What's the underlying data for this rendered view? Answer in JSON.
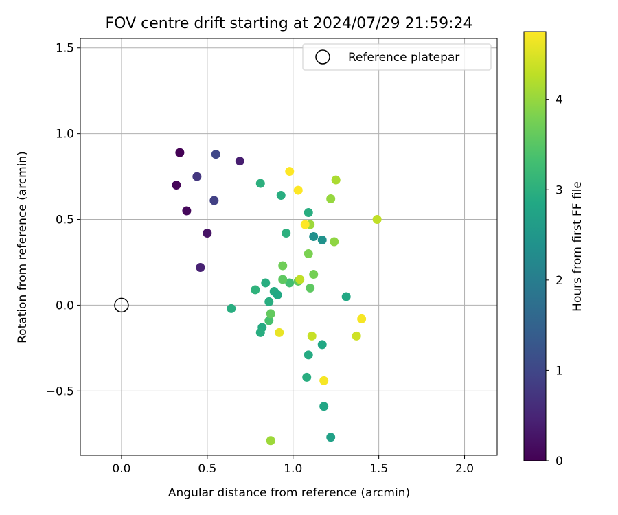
{
  "chart_data": {
    "type": "scatter",
    "title": "FOV centre drift starting at 2024/07/29 21:59:24",
    "xlabel": "Angular distance from reference (arcmin)",
    "ylabel": "Rotation from reference (arcmin)",
    "xlim": [
      -0.24,
      2.19
    ],
    "ylim": [
      -0.875,
      1.555
    ],
    "xticks": [
      0.0,
      0.5,
      1.0,
      1.5,
      2.0
    ],
    "xtick_labels": [
      "0.0",
      "0.5",
      "1.0",
      "1.5",
      "2.0"
    ],
    "yticks": [
      -0.5,
      0.0,
      0.5,
      1.0,
      1.5
    ],
    "ytick_labels": [
      "−0.5",
      "0.0",
      "0.5",
      "1.0",
      "1.5"
    ],
    "grid": true,
    "legend": {
      "label": "Reference platepar",
      "placement": "top-right"
    },
    "reference_point": {
      "x": 0.0,
      "y": 0.0
    },
    "colorbar": {
      "label": "Hours from first FF file",
      "range": [
        0,
        4.75
      ],
      "ticks": [
        0,
        1,
        2,
        3,
        4
      ],
      "tick_labels": [
        "0",
        "1",
        "2",
        "3",
        "4"
      ],
      "colormap": "viridis"
    },
    "points": [
      {
        "x": 0.34,
        "y": 0.89,
        "t": 0.02
      },
      {
        "x": 0.32,
        "y": 0.7,
        "t": 0.06
      },
      {
        "x": 0.38,
        "y": 0.55,
        "t": 0.1
      },
      {
        "x": 0.5,
        "y": 0.42,
        "t": 0.25
      },
      {
        "x": 0.69,
        "y": 0.84,
        "t": 0.4
      },
      {
        "x": 0.46,
        "y": 0.22,
        "t": 0.45
      },
      {
        "x": 0.44,
        "y": 0.75,
        "t": 0.75
      },
      {
        "x": 0.54,
        "y": 0.61,
        "t": 0.9
      },
      {
        "x": 0.55,
        "y": 0.88,
        "t": 1.0
      },
      {
        "x": 1.12,
        "y": 0.4,
        "t": 2.35
      },
      {
        "x": 1.17,
        "y": 0.38,
        "t": 2.4
      },
      {
        "x": 0.81,
        "y": 0.71,
        "t": 3.0
      },
      {
        "x": 0.93,
        "y": 0.64,
        "t": 2.95
      },
      {
        "x": 1.09,
        "y": 0.54,
        "t": 2.95
      },
      {
        "x": 0.96,
        "y": 0.42,
        "t": 3.0
      },
      {
        "x": 0.78,
        "y": 0.09,
        "t": 3.05
      },
      {
        "x": 0.84,
        "y": 0.13,
        "t": 2.95
      },
      {
        "x": 0.89,
        "y": 0.08,
        "t": 2.9
      },
      {
        "x": 0.91,
        "y": 0.06,
        "t": 2.85
      },
      {
        "x": 0.86,
        "y": 0.02,
        "t": 2.95
      },
      {
        "x": 0.64,
        "y": -0.02,
        "t": 2.95
      },
      {
        "x": 0.82,
        "y": -0.13,
        "t": 2.9
      },
      {
        "x": 0.81,
        "y": -0.16,
        "t": 2.95
      },
      {
        "x": 1.31,
        "y": 0.05,
        "t": 2.85
      },
      {
        "x": 1.17,
        "y": -0.23,
        "t": 2.85
      },
      {
        "x": 1.09,
        "y": -0.29,
        "t": 2.9
      },
      {
        "x": 1.08,
        "y": -0.42,
        "t": 2.95
      },
      {
        "x": 1.18,
        "y": -0.59,
        "t": 2.8
      },
      {
        "x": 1.22,
        "y": -0.77,
        "t": 2.7
      },
      {
        "x": 0.98,
        "y": 0.13,
        "t": 3.3
      },
      {
        "x": 0.86,
        "y": -0.09,
        "t": 3.35
      },
      {
        "x": 0.87,
        "y": -0.05,
        "t": 3.6
      },
      {
        "x": 0.94,
        "y": 0.15,
        "t": 3.55
      },
      {
        "x": 0.94,
        "y": 0.23,
        "t": 3.7
      },
      {
        "x": 1.03,
        "y": 0.14,
        "t": 3.6
      },
      {
        "x": 1.1,
        "y": 0.1,
        "t": 3.55
      },
      {
        "x": 1.12,
        "y": 0.18,
        "t": 3.75
      },
      {
        "x": 1.09,
        "y": 0.3,
        "t": 3.8
      },
      {
        "x": 1.24,
        "y": 0.37,
        "t": 3.95
      },
      {
        "x": 1.1,
        "y": 0.47,
        "t": 4.05
      },
      {
        "x": 1.22,
        "y": 0.62,
        "t": 4.0
      },
      {
        "x": 1.25,
        "y": 0.73,
        "t": 4.15
      },
      {
        "x": 1.49,
        "y": 0.5,
        "t": 4.3
      },
      {
        "x": 1.11,
        "y": -0.18,
        "t": 4.35
      },
      {
        "x": 1.37,
        "y": -0.18,
        "t": 4.4
      },
      {
        "x": 0.87,
        "y": -0.79,
        "t": 4.05
      },
      {
        "x": 1.04,
        "y": 0.15,
        "t": 4.3
      },
      {
        "x": 0.92,
        "y": -0.16,
        "t": 4.6
      },
      {
        "x": 1.4,
        "y": -0.08,
        "t": 4.7
      },
      {
        "x": 1.18,
        "y": -0.44,
        "t": 4.7
      },
      {
        "x": 1.07,
        "y": 0.47,
        "t": 4.75
      },
      {
        "x": 0.98,
        "y": 0.78,
        "t": 4.75
      },
      {
        "x": 1.03,
        "y": 0.67,
        "t": 4.75
      }
    ]
  }
}
